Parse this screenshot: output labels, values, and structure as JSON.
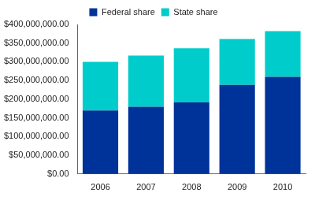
{
  "chart_data": {
    "type": "bar",
    "stacked": true,
    "grid": false,
    "legend": "top",
    "categories": [
      "2006",
      "2007",
      "2008",
      "2009",
      "2010"
    ],
    "series": [
      {
        "name": "Federal share",
        "color": "#003399",
        "values": [
          170000000,
          180000000,
          192000000,
          238000000,
          260000000
        ]
      },
      {
        "name": "State share",
        "color": "#00cccc",
        "values": [
          130000000,
          137000000,
          144000000,
          123000000,
          122000000
        ]
      }
    ],
    "ylim": [
      0,
      400000000
    ],
    "yticks": [
      {
        "value": 0,
        "label": "$0.00"
      },
      {
        "value": 50000000,
        "label": "$50,000,000.00"
      },
      {
        "value": 100000000,
        "label": "$100,000,000.00"
      },
      {
        "value": 150000000,
        "label": "$150,000,000.00"
      },
      {
        "value": 200000000,
        "label": "$200,000,000.00"
      },
      {
        "value": 250000000,
        "label": "$250,000,000.00"
      },
      {
        "value": 300000000,
        "label": "$300,000,000.00"
      },
      {
        "value": 350000000,
        "label": "$350,000,000.00"
      },
      {
        "value": 400000000,
        "label": "$400,000,000.00"
      }
    ]
  }
}
